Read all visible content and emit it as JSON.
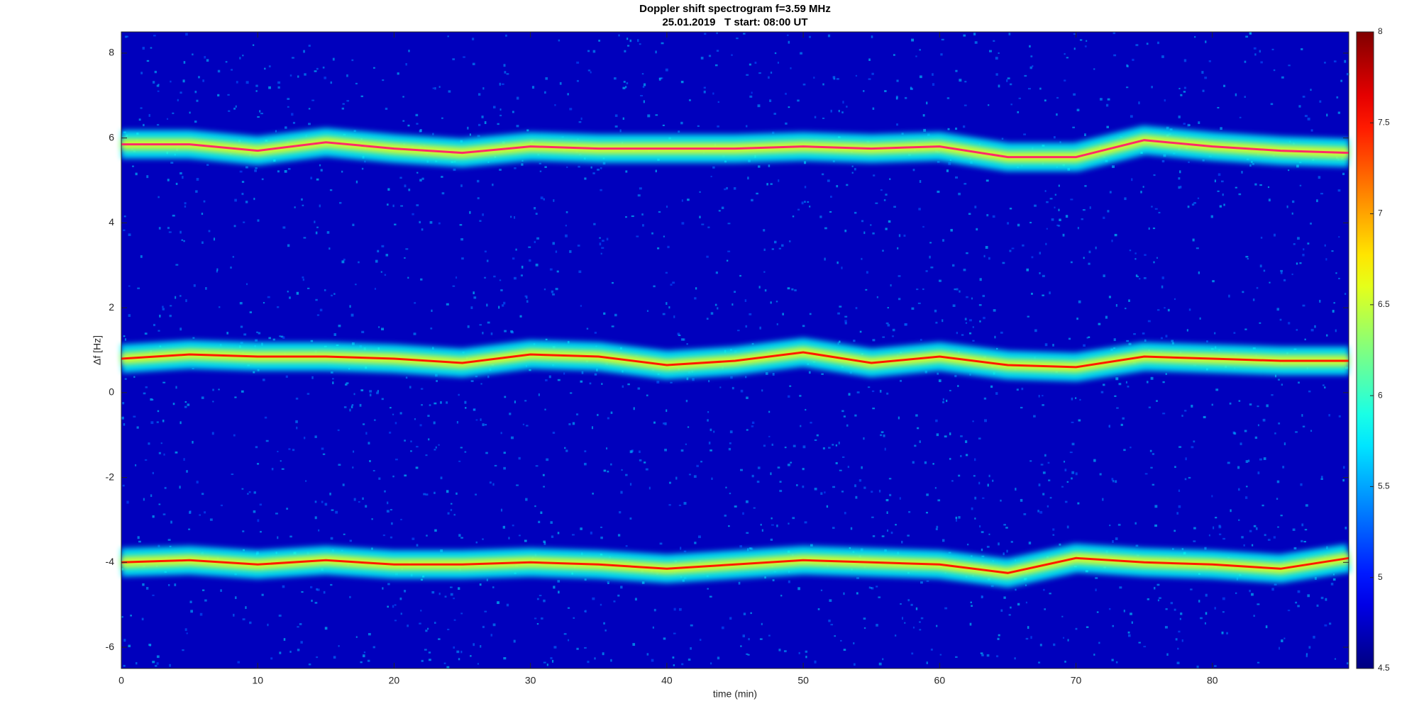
{
  "chart_data": {
    "type": "spectrogram",
    "title": "Doppler shift spectrogram f=3.59 MHz",
    "subtitle": "25.01.2019   T start: 08:00 UT",
    "x_label": "time (min)",
    "y_label": "Δf [Hz]",
    "colormap": "jet",
    "clim": [
      4.5,
      8
    ],
    "cticks": [
      4.5,
      5,
      5.5,
      6,
      6.5,
      7,
      7.5,
      8
    ],
    "x": [
      0,
      5,
      10,
      15,
      20,
      25,
      30,
      35,
      40,
      45,
      50,
      55,
      60,
      65,
      70,
      75,
      80,
      85,
      90
    ],
    "series": [
      {
        "color": "#ff2a6a",
        "values": [
          5.85,
          5.85,
          5.7,
          5.9,
          5.75,
          5.65,
          5.8,
          5.75,
          5.75,
          5.75,
          5.8,
          5.75,
          5.8,
          5.55,
          5.55,
          5.95,
          5.8,
          5.7,
          5.65
        ]
      },
      {
        "color": "#ff1a00",
        "values": [
          0.8,
          0.9,
          0.85,
          0.85,
          0.8,
          0.7,
          0.9,
          0.85,
          0.65,
          0.75,
          0.95,
          0.7,
          0.85,
          0.65,
          0.6,
          0.85,
          0.8,
          0.75,
          0.75
        ]
      },
      {
        "color": "#ff1a00",
        "values": [
          -4.0,
          -3.95,
          -4.05,
          -3.95,
          -4.05,
          -4.05,
          -4.0,
          -4.05,
          -4.15,
          -4.05,
          -3.95,
          -4.0,
          -4.05,
          -4.25,
          -3.9,
          -4.0,
          -4.05,
          -4.15,
          -3.9
        ]
      }
    ],
    "xlim": [
      0,
      90
    ],
    "ylim": [
      -6.5,
      8.5
    ],
    "xticks": [
      0,
      10,
      20,
      30,
      40,
      50,
      60,
      70,
      80
    ],
    "yticks": [
      -6,
      -4,
      -2,
      0,
      2,
      4,
      6,
      8
    ],
    "grid": false
  }
}
